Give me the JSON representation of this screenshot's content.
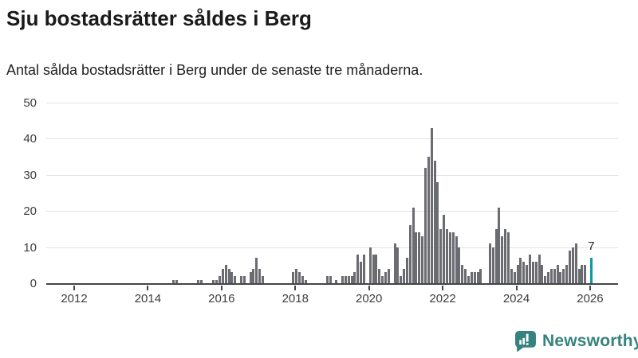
{
  "header": {
    "title": "Sju bostadsrätter såldes i Berg",
    "subtitle": "Antal sålda bostadsrätter i Berg under de senaste tre månaderna."
  },
  "chart_data": {
    "type": "bar",
    "title": "Sju bostadsrätter såldes i Berg",
    "frequency": "monthly",
    "start_month": "2011-04",
    "x_ticks": [
      2012,
      2014,
      2016,
      2018,
      2020,
      2022,
      2024,
      2026
    ],
    "y_ticks": [
      0,
      10,
      20,
      30,
      40,
      50
    ],
    "ylim": [
      0,
      50
    ],
    "grid": true,
    "bar_color": "#6b6b72",
    "highlight_color": "#089da0",
    "axis_color": "#45454a",
    "values": [
      0,
      0,
      0,
      0,
      0,
      0,
      0,
      0,
      0,
      0,
      0,
      0,
      0,
      0,
      0,
      0,
      0,
      0,
      0,
      0,
      0,
      0,
      0,
      0,
      0,
      0,
      0,
      0,
      0,
      0,
      0,
      0,
      0,
      0,
      0,
      0,
      0,
      0,
      0,
      0,
      0,
      1,
      1,
      0,
      0,
      0,
      0,
      0,
      0,
      1,
      1,
      0,
      0,
      0,
      1,
      1,
      2,
      4,
      5,
      4,
      3,
      2,
      0,
      2,
      2,
      0,
      3,
      4,
      7,
      4,
      2,
      0,
      0,
      0,
      0,
      0,
      0,
      0,
      0,
      0,
      3,
      4,
      3,
      2,
      1,
      0,
      0,
      0,
      0,
      0,
      0,
      2,
      2,
      0,
      1,
      0,
      2,
      2,
      2,
      2,
      3,
      8,
      6,
      8,
      0,
      10,
      8,
      8,
      4,
      2,
      3,
      4,
      0,
      11,
      10,
      2,
      4,
      7,
      16,
      21,
      14,
      14,
      13,
      32,
      35,
      43,
      34,
      28,
      15,
      19,
      15,
      14,
      14,
      13,
      10,
      5,
      4,
      2,
      3,
      3,
      3,
      4,
      0,
      0,
      11,
      10,
      15,
      21,
      13,
      15,
      14,
      4,
      3,
      5,
      7,
      6,
      5,
      8,
      6,
      6,
      8,
      5,
      2,
      3,
      4,
      4,
      5,
      3,
      4,
      5,
      9,
      10,
      11,
      4,
      5,
      5,
      0,
      7
    ],
    "highlight": {
      "index": 177,
      "value": 7,
      "label": "7"
    }
  },
  "footer": {
    "brand": "Newsworthy"
  }
}
